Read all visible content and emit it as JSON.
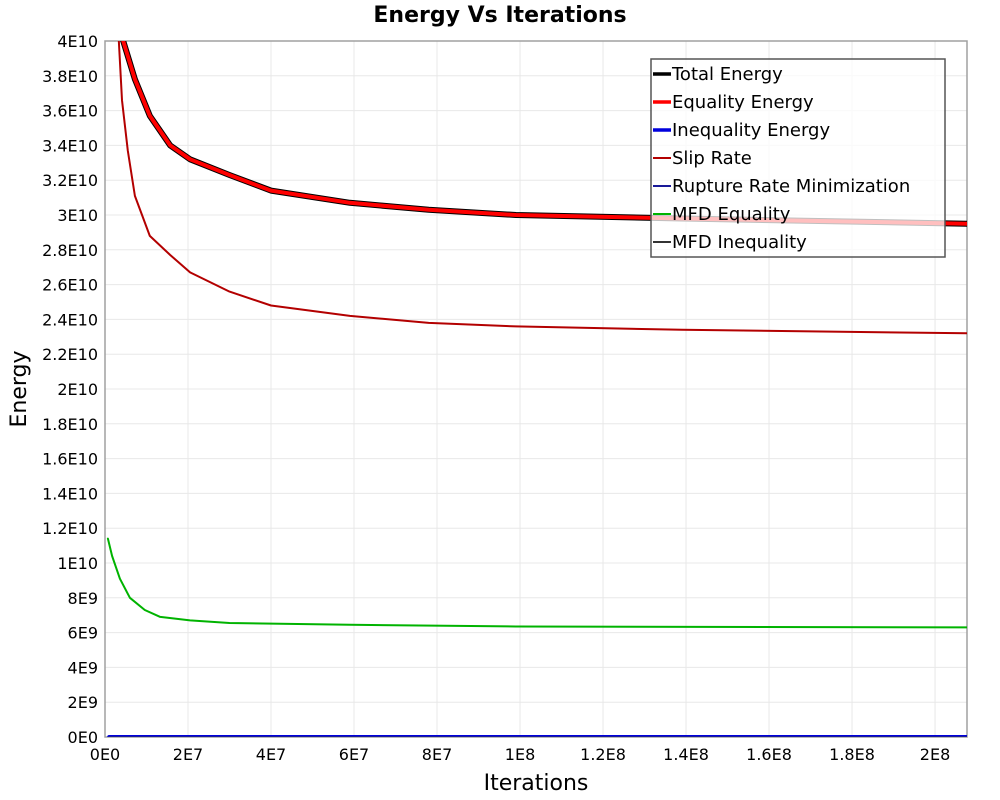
{
  "chart_data": {
    "type": "line",
    "title": "Energy Vs Iterations",
    "xlabel": "Iterations",
    "ylabel": "Energy",
    "xlim": [
      0,
      207700000
    ],
    "ylim": [
      0,
      40000000000
    ],
    "grid": true,
    "legend_position": "top-right",
    "x_ticks": [
      {
        "value": 0,
        "label": "0E0"
      },
      {
        "value": 20000000,
        "label": "2E7"
      },
      {
        "value": 40000000,
        "label": "4E7"
      },
      {
        "value": 60000000,
        "label": "6E7"
      },
      {
        "value": 80000000,
        "label": "8E7"
      },
      {
        "value": 100000000,
        "label": "1E8"
      },
      {
        "value": 120000000,
        "label": "1.2E8"
      },
      {
        "value": 140000000,
        "label": "1.4E8"
      },
      {
        "value": 160000000,
        "label": "1.6E8"
      },
      {
        "value": 180000000,
        "label": "1.8E8"
      },
      {
        "value": 200000000,
        "label": "2E8"
      }
    ],
    "y_ticks": [
      {
        "value": 0,
        "label": "0E0"
      },
      {
        "value": 2000000000,
        "label": "2E9"
      },
      {
        "value": 4000000000,
        "label": "4E9"
      },
      {
        "value": 6000000000,
        "label": "6E9"
      },
      {
        "value": 8000000000,
        "label": "8E9"
      },
      {
        "value": 10000000000,
        "label": "1E10"
      },
      {
        "value": 12000000000,
        "label": "1.2E10"
      },
      {
        "value": 14000000000,
        "label": "1.4E10"
      },
      {
        "value": 16000000000,
        "label": "1.6E10"
      },
      {
        "value": 18000000000,
        "label": "1.8E10"
      },
      {
        "value": 20000000000,
        "label": "2E10"
      },
      {
        "value": 22000000000,
        "label": "2.2E10"
      },
      {
        "value": 24000000000,
        "label": "2.4E10"
      },
      {
        "value": 26000000000,
        "label": "2.6E10"
      },
      {
        "value": 28000000000,
        "label": "2.8E10"
      },
      {
        "value": 30000000000,
        "label": "3E10"
      },
      {
        "value": 32000000000,
        "label": "3.2E10"
      },
      {
        "value": 34000000000,
        "label": "3.4E10"
      },
      {
        "value": 36000000000,
        "label": "3.6E10"
      },
      {
        "value": 38000000000,
        "label": "3.8E10"
      },
      {
        "value": 40000000000,
        "label": "4E10"
      }
    ],
    "series": [
      {
        "name": "Total Energy",
        "color": "#000000",
        "width_class": "thick",
        "points": [
          [
            3100000,
            41000000000
          ],
          [
            7200000,
            37800000000
          ],
          [
            10800000,
            35700000000
          ],
          [
            15700000,
            34000000000
          ],
          [
            20500000,
            33200000000
          ],
          [
            30000000,
            32300000000
          ],
          [
            40000000,
            31400000000
          ],
          [
            59000000,
            30700000000
          ],
          [
            78000000,
            30300000000
          ],
          [
            99000000,
            30000000000
          ],
          [
            139000000,
            29800000000
          ],
          [
            207700000,
            29500000000
          ]
        ]
      },
      {
        "name": "Equality Energy",
        "color": "#ff0000",
        "width_class": "thick",
        "points": [
          [
            3100000,
            41000000000
          ],
          [
            7200000,
            37800000000
          ],
          [
            10800000,
            35700000000
          ],
          [
            15700000,
            34000000000
          ],
          [
            20500000,
            33200000000
          ],
          [
            30000000,
            32300000000
          ],
          [
            40000000,
            31400000000
          ],
          [
            59000000,
            30700000000
          ],
          [
            78000000,
            30300000000
          ],
          [
            99000000,
            30000000000
          ],
          [
            139000000,
            29800000000
          ],
          [
            207700000,
            29500000000
          ]
        ]
      },
      {
        "name": "Inequality Energy",
        "color": "#0000dd",
        "width_class": "thick",
        "points": [
          [
            1000000,
            0
          ],
          [
            207700000,
            0
          ]
        ]
      },
      {
        "name": "Slip Rate",
        "color": "#b30000",
        "width_class": "thin",
        "points": [
          [
            3100000,
            41000000000
          ],
          [
            4100000,
            36600000000
          ],
          [
            5500000,
            33700000000
          ],
          [
            7200000,
            31100000000
          ],
          [
            10800000,
            28800000000
          ],
          [
            15700000,
            27700000000
          ],
          [
            20500000,
            26700000000
          ],
          [
            30000000,
            25600000000
          ],
          [
            40000000,
            24800000000
          ],
          [
            59000000,
            24200000000
          ],
          [
            78000000,
            23800000000
          ],
          [
            99000000,
            23600000000
          ],
          [
            139000000,
            23400000000
          ],
          [
            207700000,
            23200000000
          ]
        ]
      },
      {
        "name": "Rupture Rate Minimization",
        "color": "#1a1a99",
        "width_class": "thin",
        "points": [
          [
            1000000,
            0
          ],
          [
            207700000,
            0
          ]
        ]
      },
      {
        "name": "MFD Equality",
        "color": "#00b300",
        "width_class": "thin",
        "points": [
          [
            700000,
            11400000000
          ],
          [
            1700000,
            10400000000
          ],
          [
            3600000,
            9100000000
          ],
          [
            6000000,
            8000000000
          ],
          [
            9600000,
            7300000000
          ],
          [
            13300000,
            6900000000
          ],
          [
            20500000,
            6700000000
          ],
          [
            30000000,
            6550000000
          ],
          [
            59000000,
            6450000000
          ],
          [
            99000000,
            6350000000
          ],
          [
            207700000,
            6300000000
          ]
        ]
      },
      {
        "name": "MFD Inequality",
        "color": "#333333",
        "width_class": "thin",
        "points": []
      }
    ]
  }
}
